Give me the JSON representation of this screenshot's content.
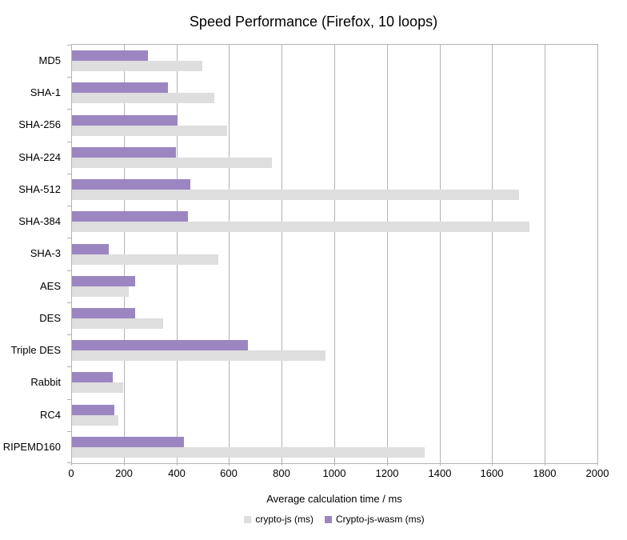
{
  "chart_data": {
    "type": "bar",
    "orientation": "horizontal",
    "title": "Speed Performance (Firefox, 10 loops)",
    "xlabel": "Average calculation time / ms",
    "xlim": [
      0,
      2000
    ],
    "xtick_step": 200,
    "grid": true,
    "legend_position": "bottom",
    "categories": [
      "MD5",
      "SHA-1",
      "SHA-256",
      "SHA-224",
      "SHA-512",
      "SHA-384",
      "SHA-3",
      "AES",
      "DES",
      "Triple DES",
      "Rabbit",
      "RC4",
      "RIPEMD160"
    ],
    "series": [
      {
        "name": "crypto-js (ms)",
        "color": "#dedede",
        "values": [
          495,
          540,
          590,
          760,
          1700,
          1740,
          555,
          215,
          345,
          965,
          195,
          175,
          1340
        ]
      },
      {
        "name": "Crypto-js-wasm (ms)",
        "color": "#9b86c1",
        "values": [
          290,
          365,
          400,
          395,
          450,
          440,
          140,
          240,
          240,
          670,
          155,
          160,
          425
        ]
      }
    ]
  },
  "colors": {
    "grid": "#b3b3b3",
    "axis": "#b3b3b3",
    "text": "#000000",
    "background": "#ffffff"
  }
}
